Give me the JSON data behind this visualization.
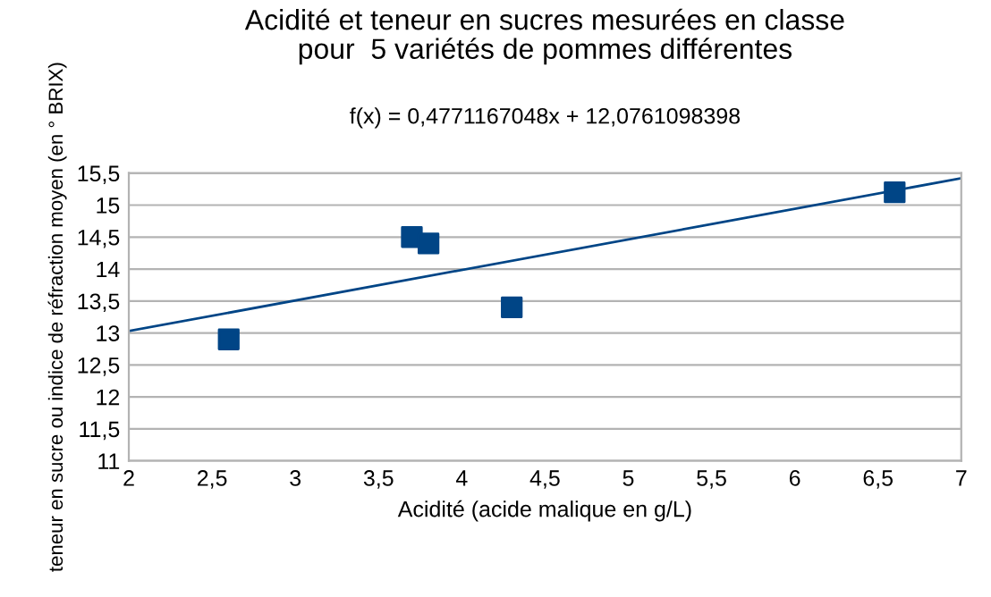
{
  "chart_data": {
    "type": "scatter",
    "title": "Acidité et teneur en sucres mesurées en classe\npour  5 variétés de pommes différentes",
    "xlabel": "Acidité (acide malique en g/L)",
    "ylabel": "teneur en sucre ou indice de réfraction moyen (en ° BRIX)",
    "annotations": [
      "f(x) = 0,4771167048x + 12,0761098398"
    ],
    "series": [
      {
        "color": "#004586",
        "marker": "square",
        "x": [
          2.6,
          3.7,
          3.8,
          4.3,
          6.6
        ],
        "values": [
          12.9,
          14.5,
          14.4,
          13.4,
          15.2
        ]
      },
      {
        "type": "line",
        "marker": "none",
        "color": "#004586",
        "x": [
          2,
          7
        ],
        "values": [
          13.03,
          15.42
        ]
      }
    ],
    "grid": "y",
    "xlim": [
      2,
      7
    ],
    "ylim": [
      11,
      15.5
    ],
    "xticks": [
      2,
      {
        "value": 2.5,
        "label": "2,5"
      },
      3,
      {
        "value": 3.5,
        "label": "3,5"
      },
      4,
      {
        "value": 4.5,
        "label": "4,5"
      },
      5,
      {
        "value": 5.5,
        "label": "5,5"
      },
      6,
      {
        "value": 6.5,
        "label": "6,5"
      },
      7
    ],
    "yticks": [
      11,
      {
        "value": 11.5,
        "label": "11,5"
      },
      12,
      {
        "value": 12.5,
        "label": "12,5"
      },
      13,
      {
        "value": 13.5,
        "label": "13,5"
      },
      14,
      {
        "value": 14.5,
        "label": "14,5"
      },
      15,
      {
        "value": 15.5,
        "label": "15,5"
      }
    ]
  }
}
